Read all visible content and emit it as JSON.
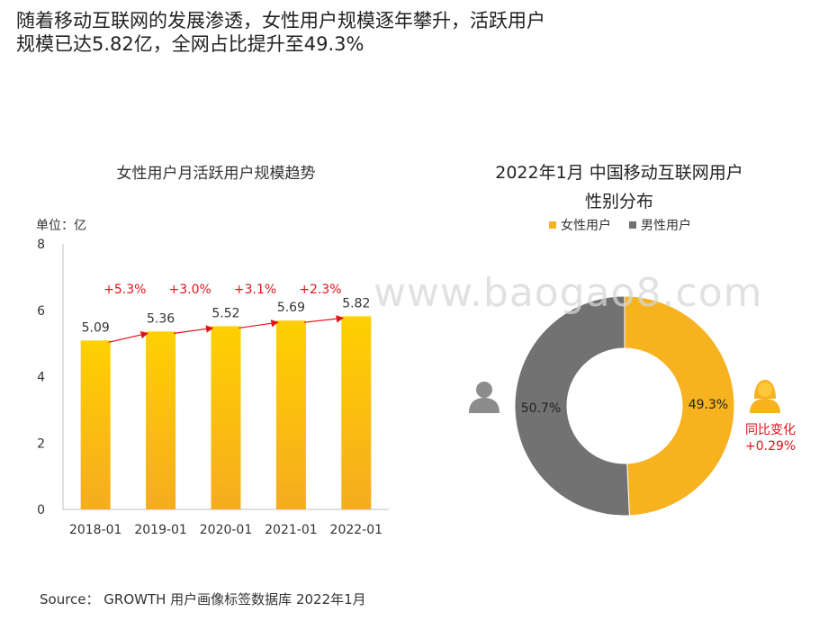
{
  "headline": {
    "line1": "随着移动互联网的发展渗透，女性用户规模逐年攀升，活跃用户",
    "line2": "规模已达5.82亿，全网占比提升至49.3%"
  },
  "watermark": "www.baogao8.com",
  "source": "Source： GROWTH 用户画像标签数据库 2022年1月",
  "colors": {
    "bar_top": "#ffd000",
    "bar_bottom": "#f6ac1f",
    "arrow": "#e0121b",
    "female": "#f6b21f",
    "male": "#727272",
    "text": "#222222"
  },
  "chart_data": [
    {
      "type": "bar",
      "title": "女性用户月活跃用户规模趋势",
      "unit_label": "单位：亿",
      "categories": [
        "2018-01",
        "2019-01",
        "2020-01",
        "2021-01",
        "2022-01"
      ],
      "values": [
        5.09,
        5.36,
        5.52,
        5.69,
        5.82
      ],
      "value_labels": [
        "5.09",
        "5.36",
        "5.52",
        "5.69",
        "5.82"
      ],
      "growth_labels": [
        "+5.3%",
        "+3.0%",
        "+3.1%",
        "+2.3%"
      ],
      "yticks": [
        "0",
        "2",
        "4",
        "6",
        "8"
      ],
      "ylim": [
        0,
        8
      ]
    },
    {
      "type": "pie",
      "title_line1": "2022年1月 中国移动互联网用户",
      "title_line2": "性别分布",
      "labels": [
        "女性用户",
        "男性用户"
      ],
      "values": [
        49.3,
        50.7
      ],
      "value_labels": [
        "49.3%",
        "50.7%"
      ],
      "yoy_label": "同比变化",
      "yoy_value": "+0.29%"
    }
  ]
}
